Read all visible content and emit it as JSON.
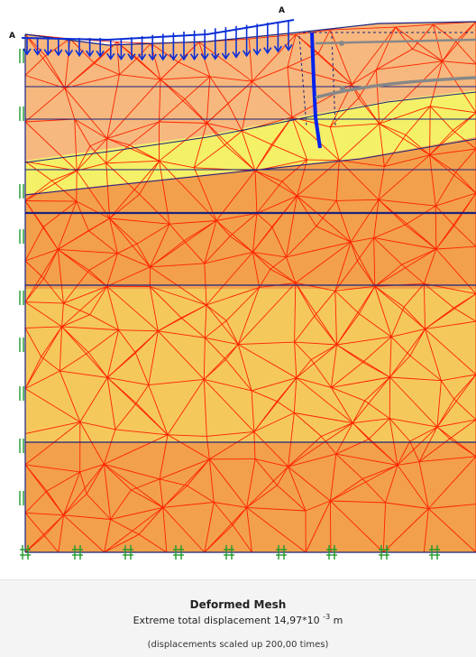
{
  "labels": {
    "point_a_left": "A",
    "point_a_top": "A"
  },
  "caption": {
    "title": "Deformed Mesh",
    "line1_prefix": "Extreme total displacement 14,97*10",
    "line1_exponent": "-3",
    "line1_unit": "m",
    "line2": "(displacements scaled up 200,00 times)"
  },
  "colors": {
    "layer_top": "#f6b87e",
    "layer_yellow": "#f4f067",
    "layer_orange": "#f2a04c",
    "layer_light": "#f5c85c",
    "layer_bottom": "#f2a04c",
    "mesh_lines": "#ff2200",
    "boundaries": "#1a237e",
    "load_arrows": "#0b2fd6",
    "wall": "#0022ee",
    "anchors": "#888888",
    "fixities": "#1f9a2a"
  }
}
